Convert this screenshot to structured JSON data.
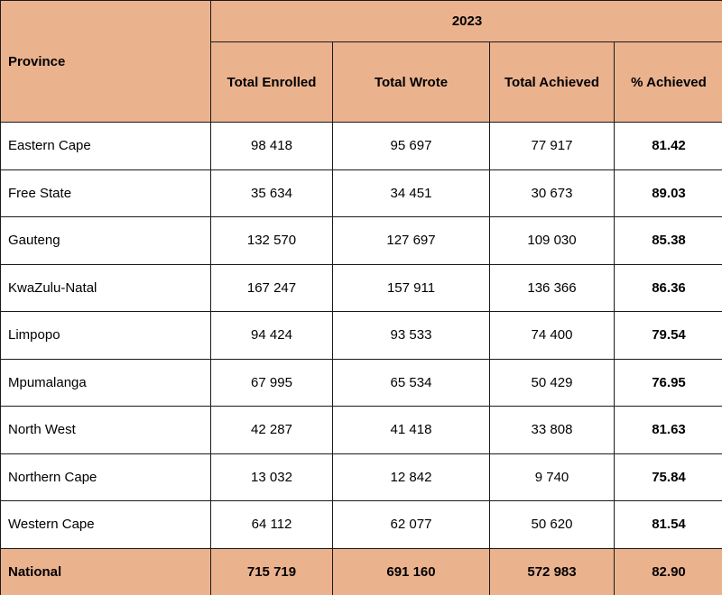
{
  "table": {
    "province_header": "Province",
    "year_header": "2023",
    "columns": [
      "Total Enrolled",
      "Total Wrote",
      "Total Achieved",
      "% Achieved"
    ],
    "rows": [
      {
        "province": "Eastern Cape",
        "enrolled": "98 418",
        "wrote": "95 697",
        "achieved": "77 917",
        "pct": "81.42"
      },
      {
        "province": "Free State",
        "enrolled": "35 634",
        "wrote": "34 451",
        "achieved": "30 673",
        "pct": "89.03"
      },
      {
        "province": "Gauteng",
        "enrolled": "132 570",
        "wrote": "127 697",
        "achieved": "109 030",
        "pct": "85.38"
      },
      {
        "province": "KwaZulu-Natal",
        "enrolled": "167 247",
        "wrote": "157 911",
        "achieved": "136 366",
        "pct": "86.36"
      },
      {
        "province": "Limpopo",
        "enrolled": "94 424",
        "wrote": "93 533",
        "achieved": "74 400",
        "pct": "79.54"
      },
      {
        "province": "Mpumalanga",
        "enrolled": "67 995",
        "wrote": "65 534",
        "achieved": "50 429",
        "pct": "76.95"
      },
      {
        "province": "North West",
        "enrolled": "42 287",
        "wrote": "41 418",
        "achieved": "33 808",
        "pct": "81.63"
      },
      {
        "province": "Northern Cape",
        "enrolled": "13 032",
        "wrote": "12 842",
        "achieved": "9 740",
        "pct": "75.84"
      },
      {
        "province": "Western Cape",
        "enrolled": "64 112",
        "wrote": "62 077",
        "achieved": "50 620",
        "pct": "81.54"
      }
    ],
    "national": {
      "province": "National",
      "enrolled": "715 719",
      "wrote": "691 160",
      "achieved": "572 983",
      "pct": "82.90"
    }
  },
  "colors": {
    "header_bg": "#ebb28e",
    "border": "#1a1a1a"
  }
}
